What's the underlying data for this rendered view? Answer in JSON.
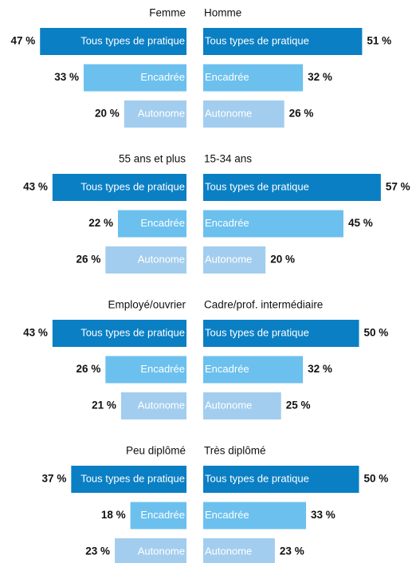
{
  "chart_data": {
    "type": "butterfly",
    "categories": [
      "Tous types de pratique",
      "Encadrée",
      "Autonome"
    ],
    "colors": [
      "#0a7fc4",
      "#6cc0ee",
      "#a3cdee"
    ],
    "groups": [
      {
        "left": {
          "name": "Femme",
          "values": [
            47,
            33,
            20
          ],
          "value_labels": [
            "47 %",
            "33 %",
            "20 %"
          ]
        },
        "right": {
          "name": "Homme",
          "values": [
            51,
            32,
            26
          ],
          "value_labels": [
            "51 %",
            "32 %",
            "26 %"
          ]
        }
      },
      {
        "left": {
          "name": "55 ans et plus",
          "values": [
            43,
            22,
            26
          ],
          "value_labels": [
            "43 %",
            "22 %",
            "26 %"
          ]
        },
        "right": {
          "name": "15-34 ans",
          "values": [
            57,
            45,
            20
          ],
          "value_labels": [
            "57 %",
            "45 %",
            "20 %"
          ]
        }
      },
      {
        "left": {
          "name": "Employé/ouvrier",
          "values": [
            43,
            26,
            21
          ],
          "value_labels": [
            "43 %",
            "26 %",
            "21 %"
          ]
        },
        "right": {
          "name": "Cadre/prof. intermédiaire",
          "values": [
            50,
            32,
            25
          ],
          "value_labels": [
            "50 %",
            "32 %",
            "25 %"
          ]
        }
      },
      {
        "left": {
          "name": "Peu diplômé",
          "values": [
            37,
            18,
            23
          ],
          "value_labels": [
            "37 %",
            "18 %",
            "23 %"
          ]
        },
        "right": {
          "name": "Très diplômé",
          "values": [
            50,
            33,
            23
          ],
          "value_labels": [
            "50 %",
            "33 %",
            "23 %"
          ]
        }
      }
    ]
  }
}
